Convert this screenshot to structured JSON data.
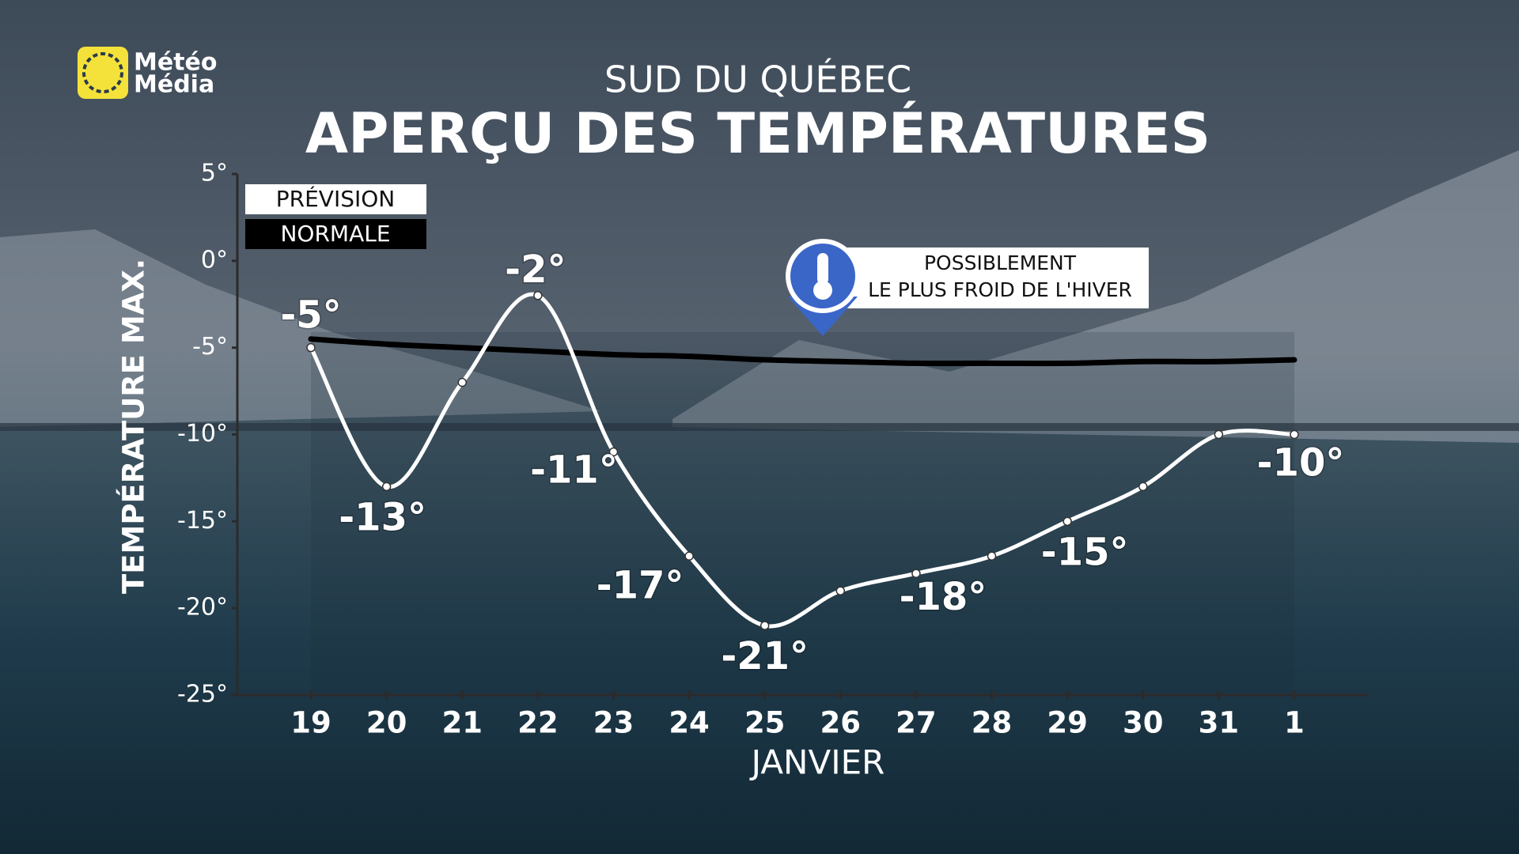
{
  "logo": [
    "Météo",
    "Média"
  ],
  "chart_data": {
    "type": "line",
    "subtitle": "SUD DU QUÉBEC",
    "title": "APERÇU DES TEMPÉRATURES",
    "y_label": "TEMPÉRATURE MAX.",
    "x_label": "JANVIER",
    "annotation": [
      "POSSIBLEMENT",
      "LE PLUS FROID DE L'HIVER"
    ],
    "categories": [
      "19",
      "20",
      "21",
      "22",
      "23",
      "24",
      "25",
      "26",
      "27",
      "28",
      "29",
      "30",
      "31",
      "1"
    ],
    "series": [
      {
        "name": "PRÉVISION",
        "color": "#ffffff",
        "values": [
          -5,
          -13,
          -7,
          -2,
          -11,
          -17,
          -21,
          -19,
          -18,
          -17,
          -15,
          -13,
          -10,
          -10
        ],
        "value_labels": [
          "-5°",
          "-13°",
          null,
          "-2°",
          "-11°",
          "-17°",
          "-21°",
          null,
          "-18°",
          null,
          "-15°",
          null,
          null,
          "-10°"
        ]
      },
      {
        "name": "NORMALE",
        "color": "#000000",
        "values": [
          -4.5,
          -4.8,
          -5.0,
          -5.2,
          -5.4,
          -5.5,
          -5.7,
          -5.8,
          -5.9,
          -5.9,
          -5.9,
          -5.8,
          -5.8,
          -5.7
        ]
      }
    ],
    "ylim": [
      -25,
      5
    ],
    "yticks": [
      {
        "value": 5,
        "label": "5°"
      },
      {
        "value": 0,
        "label": "0°"
      },
      {
        "value": -5,
        "label": "-5°"
      },
      {
        "value": -10,
        "label": "-10°"
      },
      {
        "value": -15,
        "label": "-15°"
      },
      {
        "value": -20,
        "label": "-20°"
      },
      {
        "value": -25,
        "label": "-25°"
      }
    ]
  }
}
